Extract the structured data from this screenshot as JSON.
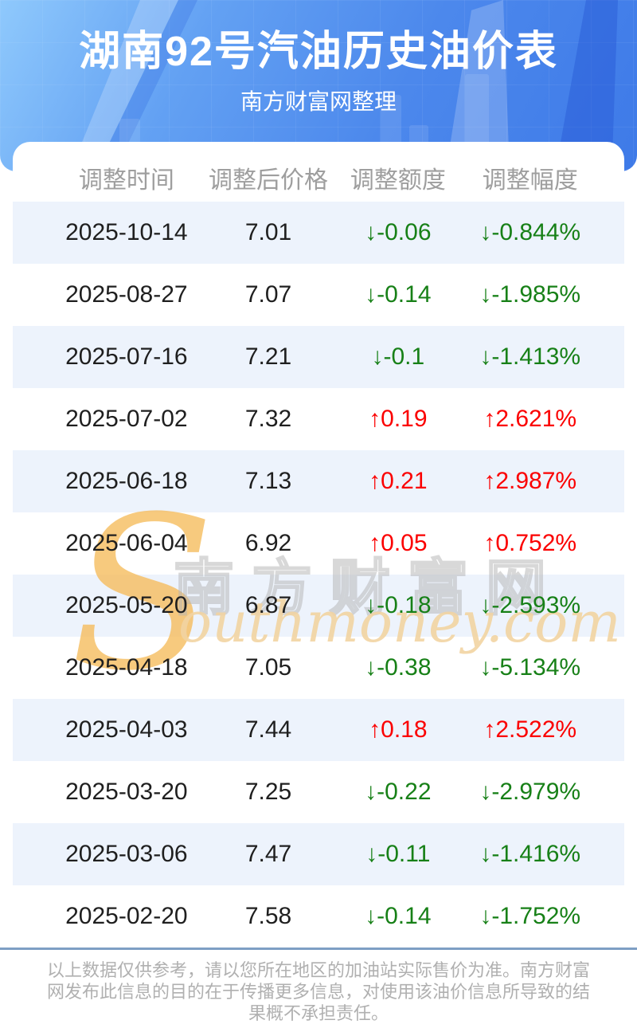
{
  "chart_data": {
    "type": "table",
    "title": "湖南92号汽油历史油价表",
    "subtitle": "南方财富网整理",
    "columns": [
      "调整时间",
      "调整后价格",
      "调整额度",
      "调整幅度"
    ],
    "rows": [
      {
        "date": "2025-10-14",
        "price": "7.01",
        "change": "-0.06",
        "change_pct": "-0.844%"
      },
      {
        "date": "2025-08-27",
        "price": "7.07",
        "change": "-0.14",
        "change_pct": "-1.985%"
      },
      {
        "date": "2025-07-16",
        "price": "7.21",
        "change": "-0.1",
        "change_pct": "-1.413%"
      },
      {
        "date": "2025-07-02",
        "price": "7.32",
        "change": "0.19",
        "change_pct": "2.621%"
      },
      {
        "date": "2025-06-18",
        "price": "7.13",
        "change": "0.21",
        "change_pct": "2.987%"
      },
      {
        "date": "2025-06-04",
        "price": "6.92",
        "change": "0.05",
        "change_pct": "0.752%"
      },
      {
        "date": "2025-05-20",
        "price": "6.87",
        "change": "-0.18",
        "change_pct": "-2.593%"
      },
      {
        "date": "2025-04-18",
        "price": "7.05",
        "change": "-0.38",
        "change_pct": "-5.134%"
      },
      {
        "date": "2025-04-03",
        "price": "7.44",
        "change": "0.18",
        "change_pct": "2.522%"
      },
      {
        "date": "2025-03-20",
        "price": "7.25",
        "change": "-0.22",
        "change_pct": "-2.979%"
      },
      {
        "date": "2025-03-06",
        "price": "7.47",
        "change": "-0.11",
        "change_pct": "-1.416%"
      },
      {
        "date": "2025-02-20",
        "price": "7.58",
        "change": "-0.14",
        "change_pct": "-1.752%"
      }
    ],
    "layout": {
      "zebra_stripes": true,
      "striped_rows": "odd"
    }
  },
  "icons": {
    "up_arrow": "↑",
    "down_arrow": "↓"
  },
  "watermark": {
    "initial": "S",
    "site_cn": "南方财富网",
    "site_en": "outhmoney.com"
  },
  "footer": {
    "disclaimer": "以上数据仅供参考，请以您所在地区的加油站实际售价为准。南方财富网发布此信息的目的在于传播更多信息，对使用该油价信息所导致的结果概不承担责任。"
  },
  "colors": {
    "banner_blue_light": "#8fc9fc",
    "banner_blue_dark": "#3e7ae8",
    "row_stripe": "#edf3fc",
    "increase_red": "#fb0000",
    "decrease_green": "#178017",
    "header_gray": "#9e9e9e",
    "divider_blue": "#7e9fc4",
    "footer_gray": "#b0b0b0",
    "watermark_orange": "#f6bd5e"
  }
}
